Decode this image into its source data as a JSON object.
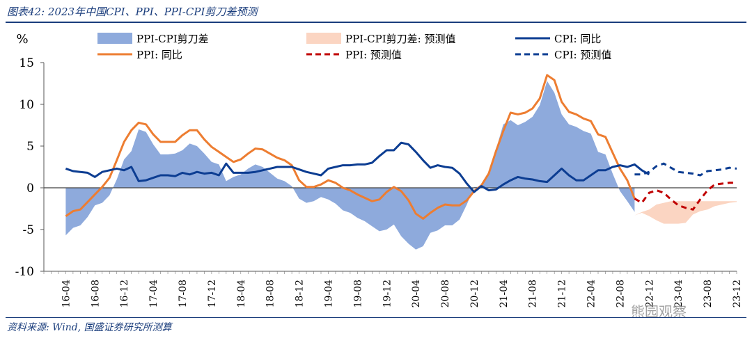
{
  "title": "图表42: 2023年中国CPI、PPI、PPI-CPI剪刀差预测",
  "source": "资料来源: Wind, 国盛证券研究所测算",
  "watermark": "熊园观察",
  "colors": {
    "title": "#1a3d7c",
    "cpi": "#0c3d92",
    "ppi": "#ed7d31",
    "spread": "#8eaadc",
    "spread_forecast": "#fbd5c2",
    "ppi_forecast": "#c00000",
    "cpi_forecast": "#0c3d92",
    "zero_line": "#404040"
  },
  "chart_data": {
    "type": "line",
    "ylabel": "%",
    "ylim": [
      -10,
      15
    ],
    "yticks": [
      -10,
      -5,
      0,
      5,
      10,
      15
    ],
    "xtick_labels": [
      "16-04",
      "16-08",
      "16-12",
      "17-04",
      "17-08",
      "17-12",
      "18-04",
      "18-08",
      "18-12",
      "19-04",
      "19-08",
      "19-12",
      "20-04",
      "20-08",
      "20-12",
      "21-04",
      "21-08",
      "21-12",
      "22-04",
      "22-08",
      "22-12",
      "23-04",
      "23-08",
      "23-12"
    ],
    "legend": [
      {
        "key": "spread",
        "label": "PPI-CPI剪刀差",
        "style": "area"
      },
      {
        "key": "spread_forecast",
        "label": "PPI-CPI剪刀差: 预测值",
        "style": "area"
      },
      {
        "key": "cpi",
        "label": "CPI: 同比",
        "style": "line"
      },
      {
        "key": "ppi",
        "label": "PPI: 同比",
        "style": "line"
      },
      {
        "key": "ppi_forecast",
        "label": "PPI: 预测值",
        "style": "dashed"
      },
      {
        "key": "cpi_forecast",
        "label": "CPI: 预测值",
        "style": "dashed"
      }
    ],
    "series": [
      {
        "name": "CPI: 同比",
        "key": "cpi",
        "start": "16-04",
        "values": [
          2.3,
          2.0,
          1.9,
          1.8,
          1.3,
          1.9,
          2.1,
          2.3,
          2.1,
          2.5,
          0.8,
          0.9,
          1.2,
          1.5,
          1.5,
          1.4,
          1.8,
          1.6,
          1.9,
          1.7,
          1.8,
          1.5,
          2.9,
          1.8,
          1.8,
          1.8,
          1.9,
          2.1,
          2.3,
          2.5,
          2.5,
          2.5,
          2.2,
          1.9,
          1.7,
          1.5,
          2.3,
          2.5,
          2.7,
          2.7,
          2.8,
          2.8,
          3.0,
          3.8,
          4.5,
          4.5,
          5.4,
          5.2,
          4.3,
          3.3,
          2.4,
          2.7,
          2.5,
          2.4,
          1.7,
          0.5,
          -0.5,
          0.2,
          -0.3,
          -0.2,
          0.4,
          0.9,
          1.3,
          1.1,
          1.0,
          0.8,
          0.7,
          1.5,
          2.3,
          1.5,
          0.9,
          0.9,
          1.5,
          2.1,
          2.1,
          2.5,
          2.7,
          2.5,
          2.8,
          2.1,
          1.6
        ]
      },
      {
        "name": "PPI: 同比",
        "key": "ppi",
        "start": "16-04",
        "values": [
          -3.4,
          -2.8,
          -2.6,
          -1.7,
          -0.8,
          0.1,
          1.2,
          3.3,
          5.5,
          6.9,
          7.8,
          7.6,
          6.4,
          5.5,
          5.5,
          5.5,
          6.3,
          6.9,
          6.9,
          5.8,
          4.9,
          4.3,
          3.7,
          3.1,
          3.4,
          4.1,
          4.7,
          4.6,
          4.1,
          3.6,
          3.3,
          2.7,
          0.9,
          0.1,
          0.1,
          0.4,
          0.9,
          0.6,
          0.0,
          -0.3,
          -0.8,
          -1.2,
          -1.6,
          -1.4,
          -0.5,
          0.1,
          -0.4,
          -1.5,
          -3.1,
          -3.7,
          -3.0,
          -2.4,
          -2.0,
          -2.1,
          -2.1,
          -1.5,
          -0.4,
          0.3,
          1.7,
          4.4,
          6.8,
          9.0,
          8.8,
          9.0,
          9.5,
          10.7,
          13.5,
          12.9,
          10.3,
          9.1,
          8.8,
          8.3,
          8.0,
          6.4,
          6.1,
          4.2,
          2.3,
          0.9,
          -1.3
        ]
      },
      {
        "name": "PPI-CPI剪刀差",
        "key": "spread",
        "start": "16-04",
        "values": [
          -5.7,
          -4.8,
          -4.5,
          -3.5,
          -2.1,
          -1.8,
          -0.9,
          1.0,
          3.4,
          4.4,
          7.0,
          6.7,
          5.2,
          4.0,
          4.0,
          4.1,
          4.5,
          5.3,
          5.0,
          4.1,
          3.1,
          2.8,
          0.8,
          1.3,
          1.6,
          2.3,
          2.8,
          2.5,
          1.8,
          1.1,
          0.8,
          0.2,
          -1.3,
          -1.8,
          -1.6,
          -1.1,
          -1.4,
          -1.9,
          -2.7,
          -3.0,
          -3.6,
          -4.0,
          -4.6,
          -5.2,
          -5.0,
          -4.4,
          -5.8,
          -6.7,
          -7.4,
          -7.0,
          -5.4,
          -5.1,
          -4.5,
          -4.5,
          -3.8,
          -2.0,
          0.1,
          0.1,
          2.0,
          4.6,
          7.6,
          8.1,
          7.5,
          7.9,
          8.5,
          9.9,
          12.8,
          11.4,
          8.8,
          7.6,
          7.3,
          6.8,
          6.5,
          4.3,
          4.0,
          1.7,
          -0.4,
          -1.6,
          -2.9
        ]
      },
      {
        "name": "PPI-CPI剪刀差: 预测值",
        "key": "spread_forecast",
        "start": "22-10",
        "upper": [
          -3.3,
          -2.9,
          -2.6,
          -2.0,
          -1.8,
          -1.6,
          -1.6,
          -1.6,
          -1.6,
          -1.6,
          -1.6,
          -1.6,
          -1.6,
          -1.6,
          -1.6
        ],
        "lower": [
          -3.3,
          -3.0,
          -3.4,
          -3.9,
          -4.3,
          -4.3,
          -4.3,
          -4.2,
          -3.2,
          -2.8,
          -2.6,
          -2.2,
          -2.0,
          -1.8,
          -1.7
        ]
      },
      {
        "name": "PPI: 预测值",
        "key": "ppi_forecast",
        "start": "22-10",
        "values": [
          -1.3,
          -1.8,
          -0.6,
          -0.3,
          -0.6,
          -1.4,
          -2.1,
          -2.4,
          -2.6,
          -1.4,
          -0.3,
          0.4,
          0.5,
          0.6,
          0.6
        ]
      },
      {
        "name": "CPI: 预测值",
        "key": "cpi_forecast",
        "start": "22-10",
        "values": [
          1.6,
          1.6,
          1.9,
          2.6,
          2.9,
          2.4,
          1.9,
          1.8,
          1.7,
          1.5,
          2.0,
          2.1,
          2.2,
          2.4,
          2.3
        ]
      }
    ]
  }
}
